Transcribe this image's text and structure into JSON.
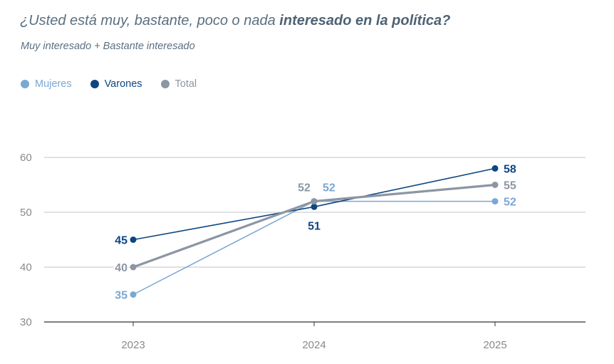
{
  "title": {
    "prefix": "¿Usted está muy, bastante, poco o nada ",
    "bold": "interesado en la política?"
  },
  "subtitle": "Muy interesado + Bastante interesado",
  "colors": {
    "mujeres": "#7ba7d3",
    "varones": "#0d4680",
    "total": "#8c96a3"
  },
  "legend": [
    {
      "name": "Mujeres",
      "color": "#7ba7d3"
    },
    {
      "name": "Varones",
      "color": "#0d4680"
    },
    {
      "name": "Total",
      "color": "#8c96a3"
    }
  ],
  "chart_data": {
    "type": "line",
    "title": "¿Usted está muy, bastante, poco o nada interesado en la política?",
    "subtitle": "Muy interesado + Bastante interesado",
    "categories": [
      "2023",
      "2024",
      "2025"
    ],
    "ylim": [
      30,
      60
    ],
    "yticks": [
      30,
      40,
      50,
      60
    ],
    "grid": true,
    "legend_position": "top-left",
    "series": [
      {
        "name": "Mujeres",
        "values": [
          35,
          52,
          52
        ],
        "color": "#7ba7d3"
      },
      {
        "name": "Varones",
        "values": [
          45,
          51,
          58
        ],
        "color": "#0d4680"
      },
      {
        "name": "Total",
        "values": [
          40,
          52,
          55
        ],
        "color": "#8c96a3"
      }
    ]
  }
}
